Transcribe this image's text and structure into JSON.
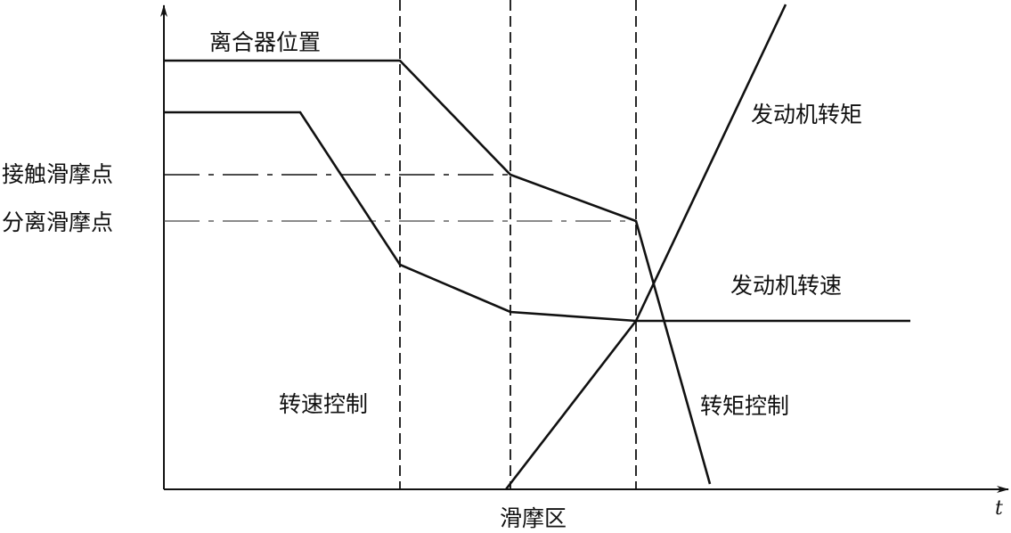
{
  "labels": {
    "clutch_position": "离合器位置",
    "engine_torque": "发动机转矩",
    "engine_speed": "发动机转速",
    "speed_control": "转速控制",
    "torque_control": "转矩控制",
    "slip_zone": "滑摩区",
    "contact_slip_point": "接触滑摩点",
    "separation_slip_point": "分离滑摩点",
    "time_axis": "t"
  },
  "colors": {
    "line": "#111111",
    "background": "#ffffff"
  }
}
